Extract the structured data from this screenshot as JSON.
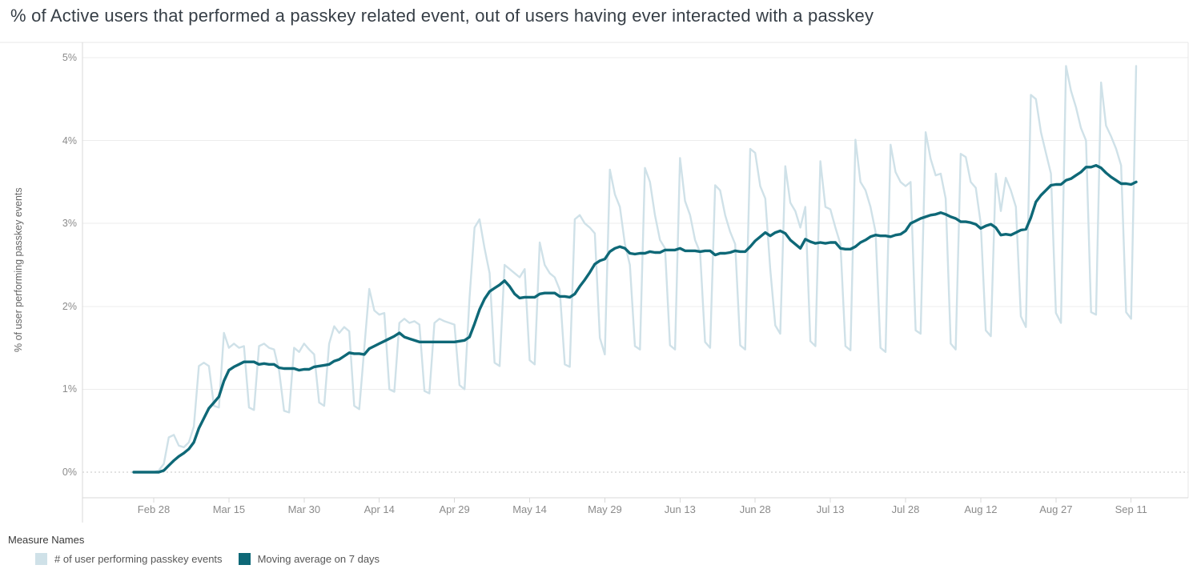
{
  "title": "% of Active users that performed a passkey related event, out of users having ever interacted with a passkey",
  "y_axis_label": "% of user performing passkey events",
  "legend": {
    "title": "Measure Names",
    "items": [
      {
        "label": "# of user performing passkey events",
        "color": "#cfe1e8"
      },
      {
        "label": "Moving average on 7 days",
        "color": "#0e6877"
      }
    ]
  },
  "chart_data": {
    "type": "line",
    "title": "% of Active users that performed a passkey related event, out of users having ever interacted with a passkey",
    "xlabel": "",
    "ylabel": "% of user performing passkey events",
    "ylim": [
      0,
      5
    ],
    "y_unit": "%",
    "grid": true,
    "legend_position": "bottom-left",
    "y_ticks": [
      "0%",
      "1%",
      "2%",
      "3%",
      "4%",
      "5%"
    ],
    "x_tick_labels": [
      "Feb 28",
      "Mar 15",
      "Mar 30",
      "Apr 14",
      "Apr 29",
      "May 14",
      "May 29",
      "Jun 13",
      "Jun 28",
      "Jul 13",
      "Jul 28",
      "Aug 12",
      "Aug 27",
      "Sep 11"
    ],
    "x": [
      "Feb 24",
      "Feb 25",
      "Feb 26",
      "Feb 27",
      "Feb 28",
      "Mar 1",
      "Mar 2",
      "Mar 3",
      "Mar 4",
      "Mar 5",
      "Mar 6",
      "Mar 7",
      "Mar 8",
      "Mar 9",
      "Mar 10",
      "Mar 11",
      "Mar 12",
      "Mar 13",
      "Mar 14",
      "Mar 15",
      "Mar 16",
      "Mar 17",
      "Mar 18",
      "Mar 19",
      "Mar 20",
      "Mar 21",
      "Mar 22",
      "Mar 23",
      "Mar 24",
      "Mar 25",
      "Mar 26",
      "Mar 27",
      "Mar 28",
      "Mar 29",
      "Mar 30",
      "Mar 31",
      "Apr 1",
      "Apr 2",
      "Apr 3",
      "Apr 4",
      "Apr 5",
      "Apr 6",
      "Apr 7",
      "Apr 8",
      "Apr 9",
      "Apr 10",
      "Apr 11",
      "Apr 12",
      "Apr 13",
      "Apr 14",
      "Apr 15",
      "Apr 16",
      "Apr 17",
      "Apr 18",
      "Apr 19",
      "Apr 20",
      "Apr 21",
      "Apr 22",
      "Apr 23",
      "Apr 24",
      "Apr 25",
      "Apr 26",
      "Apr 27",
      "Apr 28",
      "Apr 29",
      "Apr 30",
      "May 1",
      "May 2",
      "May 3",
      "May 4",
      "May 5",
      "May 6",
      "May 7",
      "May 8",
      "May 9",
      "May 10",
      "May 11",
      "May 12",
      "May 13",
      "May 14",
      "May 15",
      "May 16",
      "May 17",
      "May 18",
      "May 19",
      "May 20",
      "May 21",
      "May 22",
      "May 23",
      "May 24",
      "May 25",
      "May 26",
      "May 27",
      "May 28",
      "May 29",
      "May 30",
      "May 31",
      "Jun 1",
      "Jun 2",
      "Jun 3",
      "Jun 4",
      "Jun 5",
      "Jun 6",
      "Jun 7",
      "Jun 8",
      "Jun 9",
      "Jun 10",
      "Jun 11",
      "Jun 12",
      "Jun 13",
      "Jun 14",
      "Jun 15",
      "Jun 16",
      "Jun 17",
      "Jun 18",
      "Jun 19",
      "Jun 20",
      "Jun 21",
      "Jun 22",
      "Jun 23",
      "Jun 24",
      "Jun 25",
      "Jun 26",
      "Jun 27",
      "Jun 28",
      "Jun 29",
      "Jun 30",
      "Jul 1",
      "Jul 2",
      "Jul 3",
      "Jul 4",
      "Jul 5",
      "Jul 6",
      "Jul 7",
      "Jul 8",
      "Jul 9",
      "Jul 10",
      "Jul 11",
      "Jul 12",
      "Jul 13",
      "Jul 14",
      "Jul 15",
      "Jul 16",
      "Jul 17",
      "Jul 18",
      "Jul 19",
      "Jul 20",
      "Jul 21",
      "Jul 22",
      "Jul 23",
      "Jul 24",
      "Jul 25",
      "Jul 26",
      "Jul 27",
      "Jul 28",
      "Jul 29",
      "Jul 30",
      "Jul 31",
      "Aug 1",
      "Aug 2",
      "Aug 3",
      "Aug 4",
      "Aug 5",
      "Aug 6",
      "Aug 7",
      "Aug 8",
      "Aug 9",
      "Aug 10",
      "Aug 11",
      "Aug 12",
      "Aug 13",
      "Aug 14",
      "Aug 15",
      "Aug 16",
      "Aug 17",
      "Aug 18",
      "Aug 19",
      "Aug 20",
      "Aug 21",
      "Aug 22",
      "Aug 23",
      "Aug 24",
      "Aug 25",
      "Aug 26",
      "Aug 27",
      "Aug 28",
      "Aug 29",
      "Aug 30",
      "Aug 31",
      "Sep 1",
      "Sep 2",
      "Sep 3",
      "Sep 4",
      "Sep 5",
      "Sep 6",
      "Sep 7",
      "Sep 8",
      "Sep 9",
      "Sep 10",
      "Sep 11",
      "Sep 12"
    ],
    "series": [
      {
        "name": "# of user performing passkey events",
        "color": "#cfe1e8",
        "values": [
          0,
          0,
          0,
          0,
          0,
          0.02,
          0.1,
          0.42,
          0.45,
          0.32,
          0.3,
          0.36,
          0.55,
          1.28,
          1.32,
          1.28,
          0.8,
          0.78,
          1.68,
          1.5,
          1.55,
          1.5,
          1.52,
          0.78,
          0.75,
          1.52,
          1.55,
          1.5,
          1.48,
          1.23,
          0.74,
          0.72,
          1.5,
          1.45,
          1.55,
          1.48,
          1.42,
          0.84,
          0.8,
          1.55,
          1.76,
          1.68,
          1.75,
          1.7,
          0.8,
          0.76,
          1.5,
          2.21,
          1.95,
          1.9,
          1.92,
          1.0,
          0.97,
          1.8,
          1.85,
          1.8,
          1.82,
          1.78,
          0.98,
          0.95,
          1.8,
          1.85,
          1.82,
          1.8,
          1.78,
          1.05,
          1.0,
          2.1,
          2.95,
          3.05,
          2.7,
          2.4,
          1.32,
          1.28,
          2.5,
          2.45,
          2.4,
          2.35,
          2.45,
          1.35,
          1.3,
          2.77,
          2.5,
          2.4,
          2.35,
          2.2,
          1.3,
          1.27,
          3.05,
          3.1,
          3.0,
          2.95,
          2.88,
          1.62,
          1.42,
          3.65,
          3.35,
          3.2,
          2.75,
          2.5,
          1.52,
          1.48,
          3.67,
          3.5,
          3.1,
          2.8,
          2.7,
          1.53,
          1.48,
          3.79,
          3.27,
          3.1,
          2.8,
          2.65,
          1.57,
          1.5,
          3.46,
          3.4,
          3.1,
          2.9,
          2.75,
          1.53,
          1.48,
          3.9,
          3.85,
          3.45,
          3.3,
          2.45,
          1.77,
          1.67,
          3.69,
          3.25,
          3.15,
          2.95,
          3.2,
          1.58,
          1.52,
          3.75,
          3.2,
          3.17,
          2.95,
          2.75,
          1.52,
          1.47,
          4.01,
          3.5,
          3.4,
          3.2,
          2.9,
          1.5,
          1.45,
          3.95,
          3.62,
          3.5,
          3.45,
          3.5,
          1.71,
          1.67,
          4.1,
          3.78,
          3.58,
          3.6,
          3.3,
          1.55,
          1.48,
          3.84,
          3.8,
          3.5,
          3.43,
          3.0,
          1.71,
          1.64,
          3.6,
          3.15,
          3.55,
          3.4,
          3.2,
          1.88,
          1.75,
          4.55,
          4.5,
          4.1,
          3.85,
          3.6,
          1.92,
          1.8,
          4.9,
          4.6,
          4.4,
          4.15,
          4.0,
          1.93,
          1.9,
          4.7,
          4.18,
          4.05,
          3.9,
          3.7,
          1.93,
          1.85,
          4.9
        ]
      },
      {
        "name": "Moving average on 7 days",
        "color": "#0e6877",
        "values": [
          0,
          0,
          0,
          0,
          0,
          0.0,
          0.02,
          0.08,
          0.14,
          0.19,
          0.23,
          0.28,
          0.36,
          0.53,
          0.65,
          0.77,
          0.84,
          0.91,
          1.1,
          1.23,
          1.27,
          1.3,
          1.33,
          1.33,
          1.33,
          1.3,
          1.31,
          1.3,
          1.3,
          1.26,
          1.25,
          1.25,
          1.25,
          1.23,
          1.24,
          1.24,
          1.27,
          1.28,
          1.29,
          1.3,
          1.34,
          1.36,
          1.4,
          1.44,
          1.43,
          1.43,
          1.42,
          1.49,
          1.52,
          1.55,
          1.58,
          1.61,
          1.64,
          1.68,
          1.63,
          1.61,
          1.59,
          1.57,
          1.57,
          1.57,
          1.57,
          1.57,
          1.57,
          1.57,
          1.57,
          1.58,
          1.59,
          1.63,
          1.79,
          1.96,
          2.09,
          2.18,
          2.22,
          2.26,
          2.31,
          2.24,
          2.15,
          2.1,
          2.11,
          2.11,
          2.11,
          2.15,
          2.16,
          2.16,
          2.16,
          2.12,
          2.12,
          2.11,
          2.15,
          2.24,
          2.32,
          2.41,
          2.51,
          2.55,
          2.57,
          2.66,
          2.7,
          2.72,
          2.7,
          2.64,
          2.63,
          2.64,
          2.64,
          2.66,
          2.65,
          2.65,
          2.68,
          2.68,
          2.68,
          2.7,
          2.67,
          2.67,
          2.67,
          2.66,
          2.67,
          2.67,
          2.62,
          2.64,
          2.64,
          2.65,
          2.67,
          2.66,
          2.66,
          2.72,
          2.79,
          2.84,
          2.89,
          2.85,
          2.89,
          2.91,
          2.88,
          2.8,
          2.75,
          2.7,
          2.81,
          2.78,
          2.76,
          2.77,
          2.76,
          2.77,
          2.77,
          2.7,
          2.69,
          2.69,
          2.72,
          2.77,
          2.8,
          2.84,
          2.86,
          2.85,
          2.85,
          2.84,
          2.86,
          2.87,
          2.91,
          3.0,
          3.03,
          3.06,
          3.08,
          3.1,
          3.11,
          3.13,
          3.11,
          3.08,
          3.06,
          3.02,
          3.02,
          3.01,
          2.99,
          2.94,
          2.97,
          2.99,
          2.95,
          2.86,
          2.87,
          2.86,
          2.89,
          2.92,
          2.93,
          3.07,
          3.26,
          3.34,
          3.4,
          3.46,
          3.47,
          3.47,
          3.52,
          3.54,
          3.58,
          3.62,
          3.68,
          3.68,
          3.7,
          3.67,
          3.61,
          3.56,
          3.52,
          3.48,
          3.48,
          3.47,
          3.5
        ]
      }
    ]
  }
}
